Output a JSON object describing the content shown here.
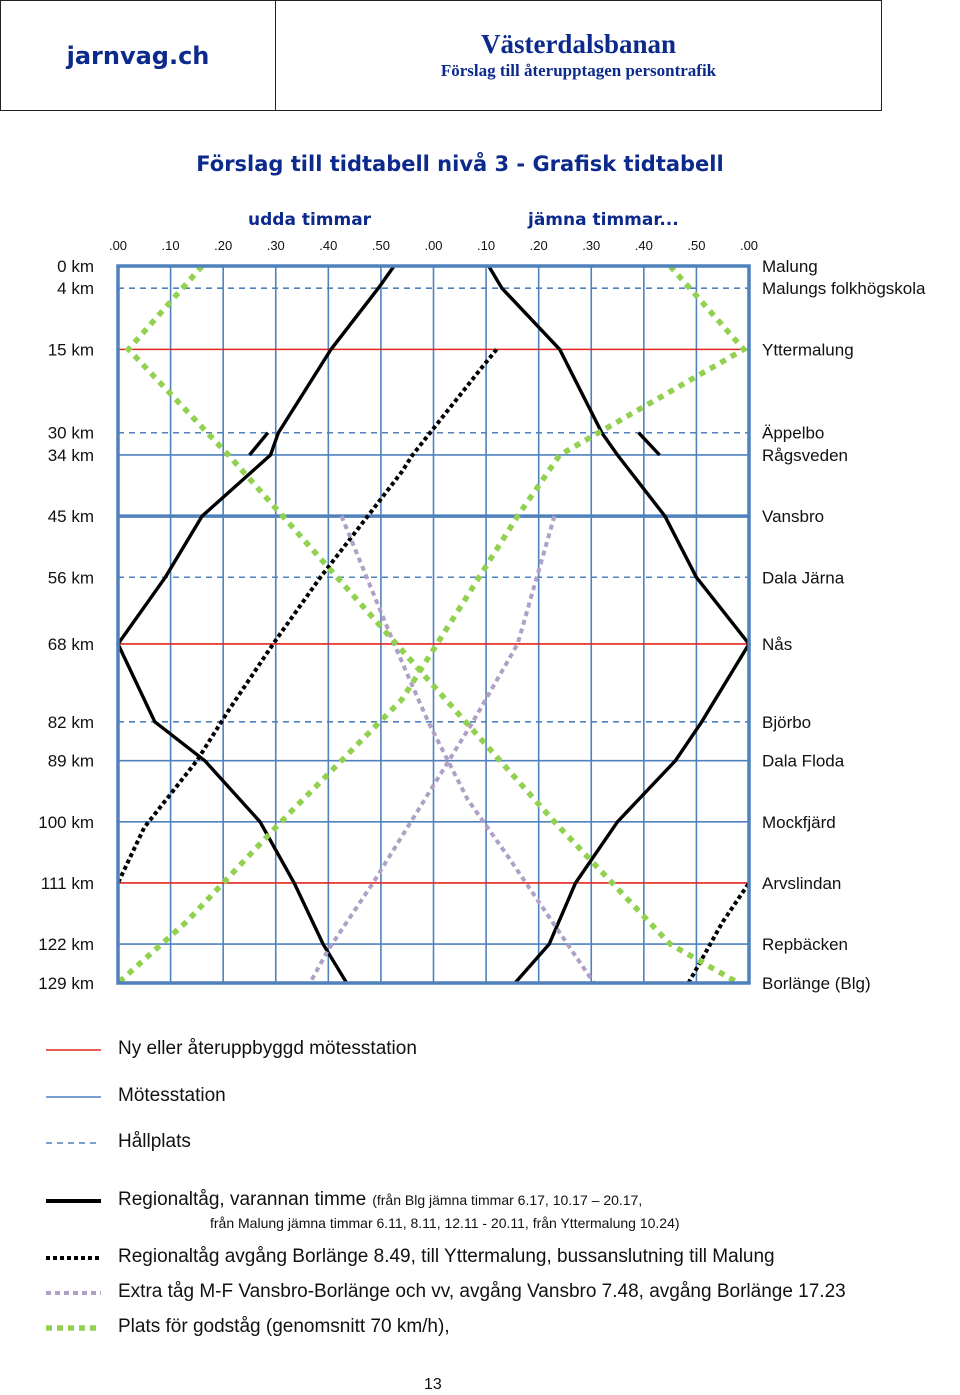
{
  "header": {
    "site": "jarnvag.ch",
    "title": "Västerdalsbanan",
    "subtitle": "Förslag till återupptagen persontrafik"
  },
  "page_title": "Förslag till tidtabell nivå 3 - Grafisk tidtabell",
  "half_labels": {
    "odd": "udda timmar",
    "even": "jämna timmar..."
  },
  "page_number": "13",
  "colors": {
    "frame": "#4f81bd",
    "new_station": "#e3261f",
    "station": "#4f81bd",
    "stop": "#4f81bd",
    "regional": "#000000",
    "regional_dotted": "#000000",
    "extra": "#b0a0c6",
    "freight": "#92d050"
  },
  "chart_data": {
    "type": "line",
    "title": "Förslag till tidtabell nivå 3 - Grafisk tidtabell",
    "x_unit": "minutes over a two-hour period (odd hour then even hour)",
    "x_ticks": [
      {
        "label": ".00",
        "t": 0
      },
      {
        "label": ".10",
        "t": 10
      },
      {
        "label": ".20",
        "t": 20
      },
      {
        "label": ".30",
        "t": 30
      },
      {
        "label": ".40",
        "t": 40
      },
      {
        "label": ".50",
        "t": 50
      },
      {
        "label": ".00",
        "t": 60
      },
      {
        "label": ".10",
        "t": 70
      },
      {
        "label": ".20",
        "t": 80
      },
      {
        "label": ".30",
        "t": 90
      },
      {
        "label": ".40",
        "t": 100
      },
      {
        "label": ".50",
        "t": 110
      },
      {
        "label": ".00",
        "t": 120
      }
    ],
    "xlim": [
      0,
      120
    ],
    "y_unit": "km",
    "ylim": [
      0,
      129
    ],
    "stations": [
      {
        "km": 0,
        "km_label": "0 km",
        "name": "Malung",
        "type": "frame"
      },
      {
        "km": 4,
        "km_label": "4 km",
        "name": "Malungs folkhögskola",
        "type": "stop"
      },
      {
        "km": 15,
        "km_label": "15 km",
        "name": "Yttermalung",
        "type": "new"
      },
      {
        "km": 30,
        "km_label": "30 km",
        "name": "Äppelbo",
        "type": "stop"
      },
      {
        "km": 34,
        "km_label": "34 km",
        "name": "Rågsveden",
        "type": "station"
      },
      {
        "km": 45,
        "km_label": "45 km",
        "name": "Vansbro",
        "type": "frame"
      },
      {
        "km": 56,
        "km_label": "56 km",
        "name": "Dala Järna",
        "type": "stop"
      },
      {
        "km": 68,
        "km_label": "68 km",
        "name": "Nås",
        "type": "new"
      },
      {
        "km": 82,
        "km_label": "82 km",
        "name": "Björbo",
        "type": "stop"
      },
      {
        "km": 89,
        "km_label": "89 km",
        "name": "Dala Floda",
        "type": "station"
      },
      {
        "km": 100,
        "km_label": "100 km",
        "name": "Mockfjärd",
        "type": "station"
      },
      {
        "km": 111,
        "km_label": "111 km",
        "name": "Arvslindan",
        "type": "new"
      },
      {
        "km": 122,
        "km_label": "122 km",
        "name": "Repbäcken",
        "type": "station"
      },
      {
        "km": 129,
        "km_label": "129 km",
        "name": "Borlänge (Blg)",
        "type": "frame"
      }
    ],
    "grid": true,
    "series": [
      {
        "style": "regional",
        "points": [
          [
            52.5,
            0
          ],
          [
            49.5,
            4
          ],
          [
            40.5,
            15
          ],
          [
            30.5,
            30
          ],
          [
            29,
            34
          ],
          [
            16,
            45
          ],
          [
            9,
            56
          ],
          [
            0,
            68
          ],
          [
            7,
            82
          ],
          [
            16.5,
            89
          ],
          [
            27,
            100
          ],
          [
            33.5,
            111
          ],
          [
            39,
            122
          ],
          [
            43.5,
            129
          ]
        ]
      },
      {
        "style": "regional",
        "points": [
          [
            70.5,
            0
          ],
          [
            73,
            4
          ],
          [
            84,
            15
          ],
          [
            92,
            30
          ],
          [
            95,
            34
          ],
          [
            104,
            45
          ],
          [
            110,
            56
          ],
          [
            120,
            68
          ],
          [
            111,
            82
          ],
          [
            106,
            89
          ],
          [
            95,
            100
          ],
          [
            87,
            111
          ],
          [
            82,
            122
          ],
          [
            75.5,
            129
          ]
        ]
      },
      {
        "style": "regional",
        "points": [
          [
            25,
            34
          ],
          [
            28.5,
            30
          ]
        ]
      },
      {
        "style": "regional",
        "points": [
          [
            99,
            30
          ],
          [
            103,
            34
          ]
        ]
      },
      {
        "style": "regional_dotted",
        "points": [
          [
            72,
            15
          ],
          [
            69,
            18.5
          ],
          [
            56,
            34
          ],
          [
            54,
            37
          ],
          [
            47.5,
            45
          ],
          [
            38.5,
            56
          ],
          [
            31,
            66
          ],
          [
            29.5,
            68
          ],
          [
            21,
            80
          ],
          [
            15,
            89
          ],
          [
            5,
            101
          ],
          [
            0,
            111
          ]
        ]
      },
      {
        "style": "regional_dotted",
        "points": [
          [
            108.5,
            129
          ],
          [
            115,
            118
          ],
          [
            120,
            111
          ]
        ]
      },
      {
        "style": "extra",
        "points": [
          [
            42.5,
            45
          ],
          [
            52.5,
            68
          ],
          [
            59,
            82
          ],
          [
            66.5,
            96
          ],
          [
            74,
            106
          ],
          [
            90.5,
            129
          ]
        ]
      },
      {
        "style": "extra",
        "points": [
          [
            83,
            45
          ],
          [
            76,
            68
          ],
          [
            67.5,
            82
          ],
          [
            48.5,
            111
          ],
          [
            40,
            123
          ],
          [
            36.5,
            129
          ]
        ]
      },
      {
        "style": "freight",
        "points": [
          [
            16,
            0
          ],
          [
            2,
            15
          ],
          [
            21,
            34
          ],
          [
            83,
            100
          ],
          [
            105,
            122
          ],
          [
            118,
            129
          ]
        ]
      },
      {
        "style": "freight",
        "points": [
          [
            105,
            0
          ],
          [
            119,
            15
          ],
          [
            84,
            34
          ],
          [
            76,
            45
          ],
          [
            66,
            60
          ],
          [
            54,
            78
          ],
          [
            31,
            100
          ],
          [
            13,
            118
          ],
          [
            0,
            129
          ]
        ]
      }
    ],
    "legend": [
      {
        "style": "new_station",
        "label": "Ny eller återuppbyggd mötesstation"
      },
      {
        "style": "station",
        "label": "Mötesstation"
      },
      {
        "style": "stop",
        "label": "Hållplats"
      },
      {
        "style": "regional",
        "label": "Regionaltåg, varannan timme",
        "note": "(från Blg jämna timmar    6.17, 10.17 – 20.17,",
        "note2": "från Malung jämna timmar 6.11, 8.11, 12.11 - 20.11, från Yttermalung 10.24)"
      },
      {
        "style": "regional_dotted",
        "label": "Regionaltåg avgång Borlänge 8.49, till Yttermalung, bussanslutning till Malung"
      },
      {
        "style": "extra",
        "label": "Extra tåg M-F Vansbro-Borlänge och vv, avgång Vansbro 7.48, avgång Borlänge 17.23"
      },
      {
        "style": "freight",
        "label": "Plats för godståg (genomsnitt 70 km/h),"
      }
    ]
  }
}
